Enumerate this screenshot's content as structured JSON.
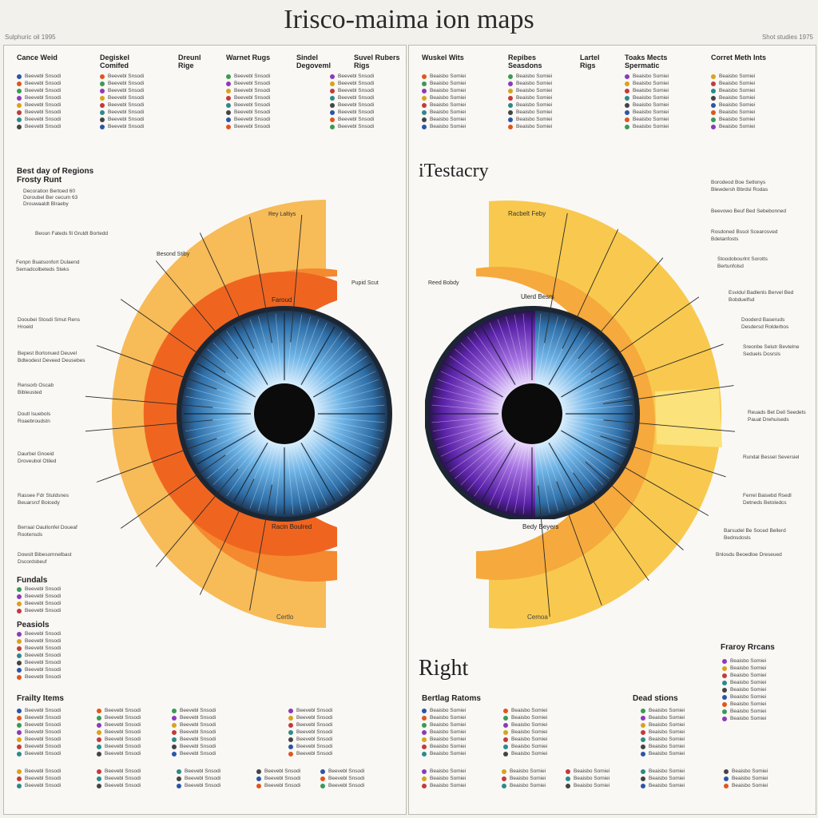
{
  "title": "Irisco-maima ion maps",
  "corner_left": "Sulphuric oil 1995",
  "corner_right": "Shot studies 1975",
  "left": {
    "headers": [
      "Cance Weid",
      "Degiskel\nComifed",
      "Dreunl\nRige",
      "Warnet Rugs",
      "Sindel\nDegoveml",
      "Suvel Rubers\nRigs"
    ],
    "regions_title": "Best day of Regions\nFrosty Runt",
    "regions_lines": [
      "Decoration Bertoed 60",
      "Doroubel Ber cecum 63",
      "Drouwaaldt Blraeby"
    ],
    "fundals_title": "Fundals",
    "peasion_title": "Peasiols",
    "frailty_title": "Frailty Items",
    "outer_label": "Certlo",
    "inner_labels": [
      "Racin Boulred",
      "Rey Laltiys",
      "Besond Stiby",
      "Faroud",
      "Pupid Scut"
    ],
    "callouts": [
      "Beoun Fateds fil Gruldt Bortedd",
      "Fenpn Buatsonfort Dulaend Semadcolbeteds Steks",
      "Dooubei Stosdi Smut Rens Hroeld",
      "Bepest Bortonued Deuvel Bdteodest Deveed Deusebes",
      "Rensorb Oscab Bibleusted",
      "Doutl Isuebols Roaebroudstn",
      "Daurbel Gnoeid Droveubol Otiled",
      "Rassee Fdr Stuldsnes Beuarsrcf Boicedy",
      "Berraal Oaullonfel Doueaf Rootensds",
      "Dowslt Bibesomnelbast Dscordsbeuf"
    ],
    "legend_rows": 8,
    "legend_text": "Beevebl Snsodi"
  },
  "right": {
    "headers": [
      "Wuskel Wits",
      "Repibes\nSeasdons",
      "Lartel\nRigs",
      "Toaks Mects\nSpermatic",
      "Corret Meth Ints"
    ],
    "testacry": "iTestacry",
    "right_label": "Right",
    "berting_title": "Bertlag Ratoms",
    "dead_title": "Dead stions",
    "frailty_title": "Fraroy Rrcans",
    "inner_labels": [
      "Racbelt Feby",
      "Reed Bobdy",
      "Ulerd Besrs",
      "Bedy Beyers",
      "Cemoa"
    ],
    "callouts": [
      "Borodeod Boe Setlonys Blewdersh Bbrdsl Rodas",
      "Beevowo Beuf Bed Sebebonned",
      "Rosdoned Bssol Scearosved Bdetanfosts",
      "Stoodobourlnt Sorotts Bertunfolsd",
      "Esvidul Badlenls Bervel Bed Bobduelfsd",
      "Dooderd Baseruds Desdersd Rolderbos",
      "Sreonbe Selutr Bevtelne Seduels Dosrsls",
      "Reuads Bet Dell Seedets Pauat Drehuiseds",
      "Rundal Bessel Seversiel",
      "Ferrel Baisebd Rsedl Detneds Betoledcs",
      "Barsudel Be Soced Bellerd Bednsdosls",
      "Bnlosdu Beoedloe Dreseued"
    ],
    "legend_rows": 8,
    "legend_text": "Beaisbo Somiei"
  },
  "colors": {
    "yellow": "#f7c64a",
    "light_orange": "#f6b25a",
    "orange": "#f57e2a",
    "deep_orange": "#ef5a1c",
    "iris_blue": "#5aa7dd",
    "iris_purple": "#7b3bc9",
    "iris_edge": "#1c2633",
    "pupil": "#0b0b0b"
  }
}
